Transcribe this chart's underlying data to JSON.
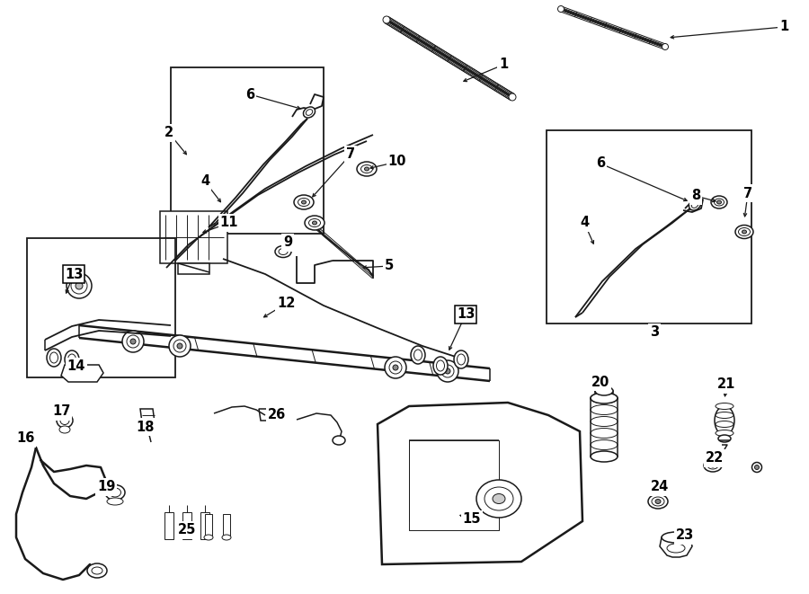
{
  "bg_color": "#ffffff",
  "line_color": "#1a1a1a",
  "fig_width": 9.0,
  "fig_height": 6.61,
  "dpi": 100,
  "lw_thin": 0.7,
  "lw_med": 1.1,
  "lw_thick": 1.8,
  "lw_part": 1.3,
  "font_label": 10.5,
  "font_small": 9.0
}
